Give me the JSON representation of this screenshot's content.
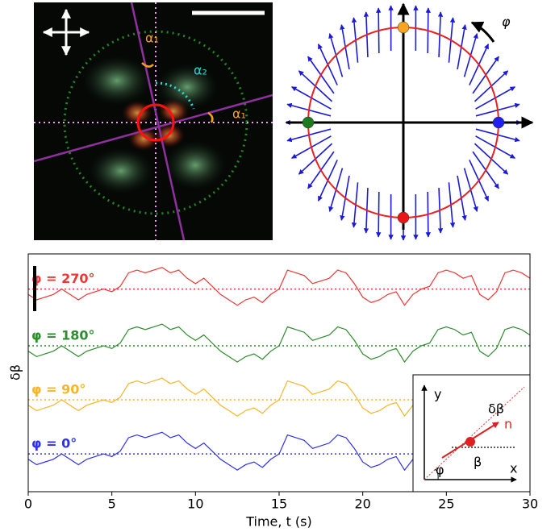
{
  "image_panel": {
    "labels": [
      "α₁",
      "α₂",
      "α₁"
    ]
  },
  "orientation_panel": {
    "label": "φ"
  },
  "inset": {
    "y": "y",
    "x": "x",
    "delta_beta": "δβ",
    "n": "n",
    "beta": "β",
    "phi": "φ"
  },
  "chart_data": {
    "type": "line",
    "x_label": "Time, t (s)",
    "y_label": "δβ",
    "xlim": [
      0,
      30
    ],
    "xticks": [
      0,
      5,
      10,
      15,
      20,
      25,
      30
    ],
    "ylim": [
      0,
      4.4
    ],
    "x": [
      0,
      0.5,
      1,
      1.5,
      2,
      2.5,
      3,
      3.5,
      4,
      4.5,
      5,
      5.5,
      6,
      6.5,
      7,
      7.5,
      8,
      8.5,
      9,
      9.5,
      10,
      10.5,
      11,
      11.5,
      12,
      12.5,
      13,
      13.5,
      14,
      14.5,
      15,
      15.5,
      16,
      16.5,
      17,
      17.5,
      18,
      18.5,
      19,
      19.5,
      20,
      20.5,
      21,
      21.5,
      22,
      22.5,
      23,
      23.5,
      24,
      24.5,
      25,
      25.5,
      26,
      26.5,
      27,
      27.5,
      28,
      28.5,
      29,
      29.5,
      30
    ],
    "series": [
      {
        "name": "φ = 270°",
        "color": "#f03535",
        "baseline": 3.75,
        "values": [
          3.65,
          3.55,
          3.6,
          3.65,
          3.75,
          3.65,
          3.55,
          3.65,
          3.7,
          3.75,
          3.7,
          3.8,
          4.05,
          4.1,
          4.05,
          4.1,
          4.15,
          4.05,
          4.1,
          3.95,
          3.85,
          3.95,
          3.8,
          3.65,
          3.55,
          3.45,
          3.55,
          3.6,
          3.5,
          3.65,
          3.75,
          4.1,
          4.05,
          4.0,
          3.85,
          3.9,
          3.95,
          4.1,
          4.05,
          3.85,
          3.6,
          3.5,
          3.55,
          3.65,
          3.7,
          3.45,
          3.65,
          3.75,
          3.8,
          4.05,
          4.1,
          4.05,
          3.95,
          4.0,
          3.65,
          3.55,
          3.7,
          4.05,
          4.1,
          4.05,
          3.95
        ]
      },
      {
        "name": "φ = 180°",
        "color": "#2e8b2e",
        "baseline": 2.7,
        "values": [
          2.6,
          2.5,
          2.55,
          2.6,
          2.7,
          2.6,
          2.5,
          2.6,
          2.65,
          2.7,
          2.65,
          2.75,
          3.0,
          3.05,
          3.0,
          3.05,
          3.1,
          3.0,
          3.05,
          2.9,
          2.8,
          2.9,
          2.75,
          2.6,
          2.5,
          2.4,
          2.5,
          2.55,
          2.45,
          2.6,
          2.7,
          3.05,
          3.0,
          2.95,
          2.8,
          2.85,
          2.9,
          3.05,
          3.0,
          2.8,
          2.55,
          2.45,
          2.5,
          2.6,
          2.65,
          2.4,
          2.6,
          2.7,
          2.75,
          3.0,
          3.05,
          3.0,
          2.9,
          2.95,
          2.6,
          2.5,
          2.65,
          3.0,
          3.05,
          3.0,
          2.9
        ]
      },
      {
        "name": "φ = 90°",
        "color": "#f7b52c",
        "baseline": 1.7,
        "values": [
          1.6,
          1.5,
          1.55,
          1.6,
          1.7,
          1.6,
          1.5,
          1.6,
          1.65,
          1.7,
          1.65,
          1.75,
          2.0,
          2.05,
          2.0,
          2.05,
          2.1,
          2.0,
          2.05,
          1.9,
          1.8,
          1.9,
          1.75,
          1.6,
          1.5,
          1.4,
          1.5,
          1.55,
          1.45,
          1.6,
          1.7,
          2.05,
          2.0,
          1.95,
          1.8,
          1.85,
          1.9,
          2.05,
          2.0,
          1.8,
          1.55,
          1.45,
          1.5,
          1.6,
          1.65,
          1.4,
          1.6,
          1.7,
          1.75,
          2.0,
          2.05,
          2.0,
          1.9,
          1.95,
          1.6,
          1.5,
          1.65,
          2.0,
          2.05,
          2.0,
          1.9
        ]
      },
      {
        "name": "φ = 0°",
        "color": "#3030f0",
        "baseline": 0.7,
        "values": [
          0.6,
          0.5,
          0.55,
          0.6,
          0.7,
          0.6,
          0.5,
          0.6,
          0.65,
          0.7,
          0.65,
          0.75,
          1.0,
          1.05,
          1.0,
          1.05,
          1.1,
          1.0,
          1.05,
          0.9,
          0.8,
          0.9,
          0.75,
          0.6,
          0.5,
          0.4,
          0.5,
          0.55,
          0.45,
          0.6,
          0.7,
          1.05,
          1.0,
          0.95,
          0.8,
          0.85,
          0.9,
          1.05,
          1.0,
          0.8,
          0.55,
          0.45,
          0.5,
          0.6,
          0.65,
          0.4,
          0.6,
          0.7,
          0.75,
          1.0,
          1.05,
          1.0,
          0.9,
          0.95,
          0.6,
          0.5,
          0.65,
          1.0,
          1.05,
          1.0,
          0.9
        ]
      }
    ]
  }
}
